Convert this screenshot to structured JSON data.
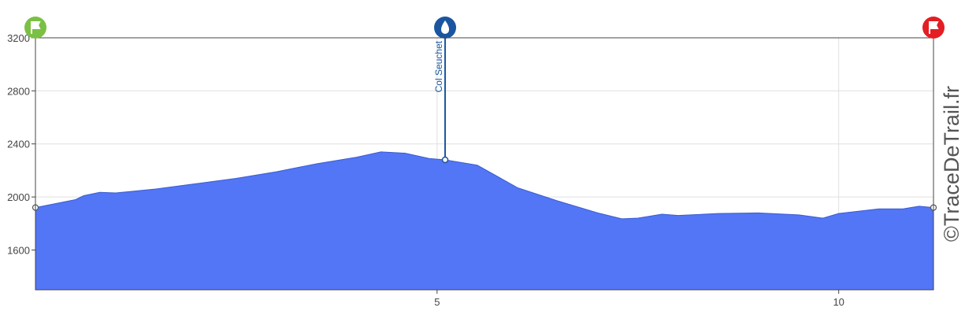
{
  "chart_data": {
    "type": "area",
    "x": [
      0,
      0.5,
      0.6,
      0.8,
      1,
      1.5,
      2,
      2.5,
      3,
      3.5,
      4,
      4.3,
      4.6,
      4.9,
      5.1,
      5.5,
      6,
      6.5,
      7,
      7.3,
      7.5,
      7.8,
      8,
      8.5,
      9,
      9.5,
      9.8,
      10,
      10.5,
      10.8,
      11,
      11.18
    ],
    "values": [
      1920,
      1980,
      2010,
      2035,
      2030,
      2060,
      2100,
      2140,
      2190,
      2250,
      2300,
      2340,
      2330,
      2290,
      2280,
      2240,
      2070,
      1970,
      1880,
      1835,
      1840,
      1870,
      1860,
      1875,
      1880,
      1865,
      1840,
      1875,
      1910,
      1910,
      1930,
      1920
    ],
    "color": "#5276f5",
    "xlim": [
      0,
      11.18
    ],
    "ylim": [
      1300,
      3200
    ],
    "xticks": [
      5,
      10
    ],
    "yticks": [
      1600,
      2000,
      2400,
      2800,
      3200
    ],
    "grid": true,
    "annotations": [
      {
        "x": 5.1,
        "y": 2280,
        "text": "Col Seuchet"
      }
    ],
    "watermark": "©TraceDeTrail.fr"
  }
}
